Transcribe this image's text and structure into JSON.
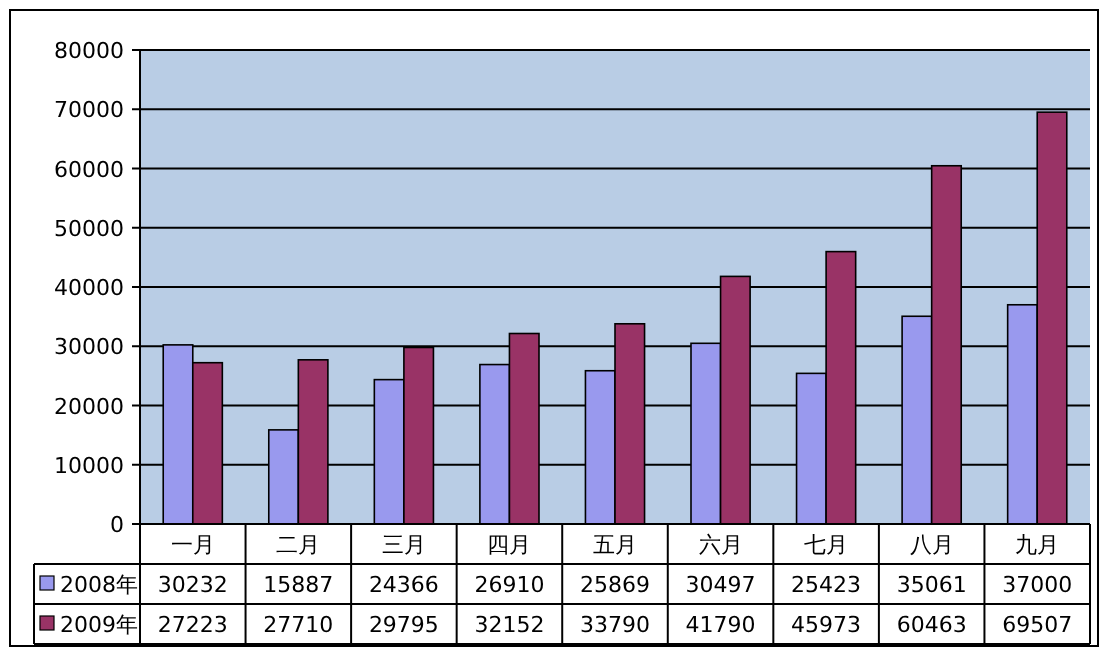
{
  "chart_data": {
    "type": "bar",
    "categories": [
      "一月",
      "二月",
      "三月",
      "四月",
      "五月",
      "六月",
      "七月",
      "八月",
      "九月"
    ],
    "series": [
      {
        "name": "2008年",
        "color": "#9999ee",
        "values": [
          30232,
          15887,
          24366,
          26910,
          25869,
          30497,
          25423,
          35061,
          37000
        ]
      },
      {
        "name": "2009年",
        "color": "#993366",
        "values": [
          27223,
          27710,
          29795,
          32152,
          33790,
          41790,
          45973,
          60463,
          69507
        ]
      }
    ],
    "ylim": [
      0,
      80000
    ],
    "yticks": [
      0,
      10000,
      20000,
      30000,
      40000,
      50000,
      60000,
      70000,
      80000
    ],
    "grid": "y",
    "legend": "bottom left",
    "data_labels": true
  }
}
